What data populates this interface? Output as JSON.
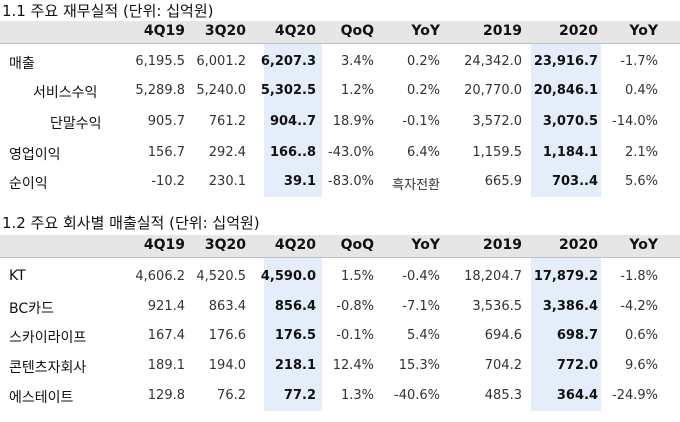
{
  "table1": {
    "title": "1.1 주요 재무실적 (단위: 십억원)",
    "headers": [
      "4Q19",
      "3Q20",
      "4Q20",
      "QoQ",
      "YoY",
      "2019",
      "2020",
      "YoY"
    ],
    "rows": [
      {
        "label": "매출",
        "values": [
          "6,195.5",
          "6,001.2",
          "6,207.3",
          "3.4%",
          "0.2%",
          "24,342.0",
          "23,916.7",
          "-1.7%"
        ]
      },
      {
        "label": "서비스수익",
        "values": [
          "5,289.8",
          "5,240.0",
          "5,302.5",
          "1.2%",
          "0.2%",
          "20,770.0",
          "20,846.1",
          "0.4%"
        ]
      },
      {
        "label": "단말수익",
        "values": [
          "905.7",
          "761.2",
          "904..7",
          "18.9%",
          "-0.1%",
          "3,572.0",
          "3,070.5",
          "-14.0%"
        ]
      },
      {
        "label": "영업이익",
        "values": [
          "156.7",
          "292.4",
          "166..8",
          "-43.0%",
          "6.4%",
          "1,159.5",
          "1,184.1",
          "2.1%"
        ]
      },
      {
        "label": "순이익",
        "values": [
          "-10.2",
          "230.1",
          "39.1",
          "-83.0%",
          "흑자전환",
          "665.9",
          "703..4",
          "5.6%"
        ]
      }
    ]
  },
  "table2": {
    "title": "1.2 주요 회사별 매출실적 (단위: 십억원)",
    "headers": [
      "4Q19",
      "3Q20",
      "4Q20",
      "QoQ",
      "YoY",
      "2019",
      "2020",
      "YoY"
    ],
    "rows": [
      {
        "label": "KT",
        "values": [
          "4,606.2",
          "4,520.5",
          "4,590.0",
          "1.5%",
          "-0.4%",
          "18,204.7",
          "17,879.2",
          "-1.8%"
        ]
      },
      {
        "label": "BC카드",
        "values": [
          "921.4",
          "863.4",
          "856.4",
          "-0.8%",
          "-7.1%",
          "3,536.5",
          "3,386.4",
          "-4.2%"
        ]
      },
      {
        "label": "스카이라이프",
        "values": [
          "167.4",
          "176.6",
          "176.5",
          "-0.1%",
          "5.4%",
          "694.6",
          "698.7",
          "0.6%"
        ]
      },
      {
        "label": "콘텐츠자회사",
        "values": [
          "189.1",
          "194.0",
          "218.1",
          "12.4%",
          "15.3%",
          "704.2",
          "772.0",
          "9.6%"
        ]
      },
      {
        "label": "에스테이트",
        "values": [
          "129.8",
          "76.2",
          "77.2",
          "1.3%",
          "-40.6%",
          "485.3",
          "364.4",
          "-24.9%"
        ]
      }
    ]
  },
  "colors": {
    "header_band": "#e6e6e6",
    "highlight": "#e4eefa"
  }
}
